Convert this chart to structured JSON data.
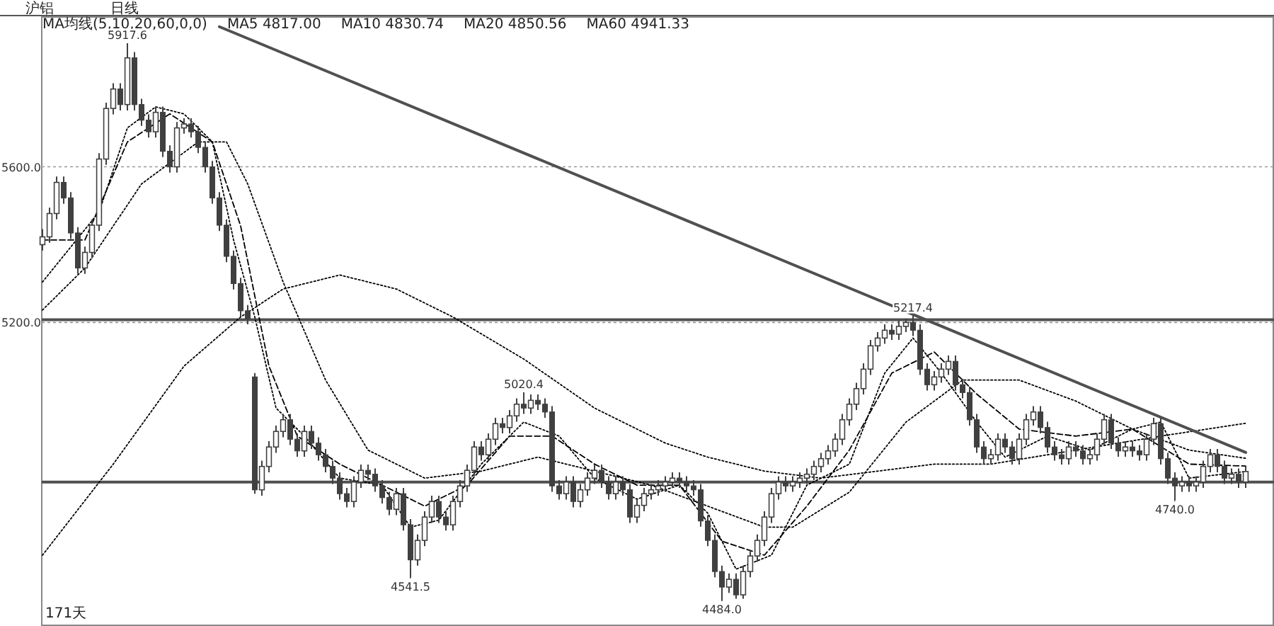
{
  "chart_data": {
    "type": "candlestick",
    "title": "沪铝",
    "subtitle": "日线",
    "categories": [
      null,
      null,
      null,
      null,
      null,
      null,
      null,
      null,
      null,
      null,
      null,
      null,
      null,
      null,
      null,
      null,
      null,
      null,
      null,
      null,
      null,
      null,
      null,
      null,
      null,
      null,
      null,
      null,
      null,
      null,
      null,
      null,
      null,
      null,
      null,
      null,
      null,
      null,
      null,
      null,
      null,
      null,
      null,
      null,
      null,
      null,
      null,
      null,
      null,
      null,
      null,
      null,
      null,
      null,
      null,
      null,
      null,
      null,
      null,
      null,
      null,
      null,
      null,
      null,
      null,
      null,
      null,
      null,
      null,
      null,
      null,
      null,
      null,
      null,
      null,
      null,
      null,
      null,
      null,
      null,
      null,
      null,
      null,
      null,
      null,
      null,
      null,
      null,
      null,
      null,
      null,
      null,
      null,
      null,
      null,
      null,
      null,
      null,
      null,
      null,
      null,
      null,
      null,
      null,
      null,
      null,
      null,
      null,
      null,
      null,
      null,
      null,
      null,
      null,
      null,
      null,
      null,
      null,
      null,
      null,
      null,
      null,
      null,
      null,
      null,
      null,
      null,
      null,
      null,
      null,
      null,
      null,
      null,
      null,
      null,
      null,
      null,
      null,
      null,
      null,
      null,
      null,
      null,
      null,
      null,
      null,
      null,
      null,
      null,
      null,
      null,
      null,
      null,
      null,
      null,
      null,
      null,
      null,
      null,
      null,
      null,
      null,
      null,
      null,
      null,
      null,
      null,
      null,
      null,
      null,
      null
    ],
    "color": "#404040",
    "ohlc": [
      [
        5400,
        5440,
        5385,
        5420
      ],
      [
        5420,
        5495,
        5405,
        5480
      ],
      [
        5480,
        5575,
        5465,
        5560
      ],
      [
        5560,
        5575,
        5505,
        5520
      ],
      [
        5520,
        5535,
        5415,
        5430
      ],
      [
        5430,
        5445,
        5325,
        5340
      ],
      [
        5340,
        5395,
        5325,
        5380
      ],
      [
        5380,
        5465,
        5365,
        5450
      ],
      [
        5450,
        5635,
        5435,
        5620
      ],
      [
        5620,
        5765,
        5605,
        5750
      ],
      [
        5750,
        5815,
        5735,
        5800
      ],
      [
        5800,
        5815,
        5745,
        5760
      ],
      [
        5760,
        5917.6,
        5745,
        5880
      ],
      [
        5880,
        5895,
        5745,
        5760
      ],
      [
        5760,
        5775,
        5705,
        5720
      ],
      [
        5720,
        5735,
        5675,
        5690
      ],
      [
        5690,
        5755,
        5675,
        5740
      ],
      [
        5740,
        5755,
        5625,
        5640
      ],
      [
        5640,
        5655,
        5585,
        5600
      ],
      [
        5600,
        5715,
        5585,
        5700
      ],
      [
        5700,
        5725,
        5685,
        5710
      ],
      [
        5710,
        5725,
        5675,
        5690
      ],
      [
        5690,
        5705,
        5635,
        5650
      ],
      [
        5650,
        5665,
        5585,
        5600
      ],
      [
        5600,
        5615,
        5505,
        5520
      ],
      [
        5520,
        5535,
        5435,
        5450
      ],
      [
        5450,
        5465,
        5355,
        5370
      ],
      [
        5370,
        5385,
        5285,
        5300
      ],
      [
        5300,
        5315,
        5215,
        5230
      ],
      [
        5230,
        5245,
        5195,
        5210
      ],
      [
        5060,
        5070,
        4760,
        4770
      ],
      [
        4770,
        4845,
        4755,
        4830
      ],
      [
        4830,
        4895,
        4815,
        4880
      ],
      [
        4880,
        4935,
        4865,
        4920
      ],
      [
        4920,
        4965,
        4905,
        4950
      ],
      [
        4950,
        4965,
        4885,
        4900
      ],
      [
        4900,
        4915,
        4855,
        4870
      ],
      [
        4870,
        4935,
        4855,
        4920
      ],
      [
        4920,
        4935,
        4875,
        4890
      ],
      [
        4890,
        4905,
        4845,
        4860
      ],
      [
        4860,
        4875,
        4815,
        4830
      ],
      [
        4830,
        4845,
        4785,
        4800
      ],
      [
        4800,
        4815,
        4745,
        4760
      ],
      [
        4760,
        4775,
        4725,
        4740
      ],
      [
        4740,
        4805,
        4725,
        4790
      ],
      [
        4790,
        4835,
        4775,
        4820
      ],
      [
        4820,
        4835,
        4795,
        4810
      ],
      [
        4810,
        4825,
        4765,
        4780
      ],
      [
        4780,
        4795,
        4735,
        4750
      ],
      [
        4750,
        4765,
        4705,
        4720
      ],
      [
        4720,
        4775,
        4705,
        4760
      ],
      [
        4760,
        4775,
        4665,
        4680
      ],
      [
        4680,
        4695,
        4541.5,
        4590
      ],
      [
        4590,
        4655,
        4575,
        4640
      ],
      [
        4640,
        4715,
        4625,
        4700
      ],
      [
        4700,
        4755,
        4685,
        4740
      ],
      [
        4740,
        4755,
        4685,
        4700
      ],
      [
        4700,
        4715,
        4665,
        4680
      ],
      [
        4680,
        4755,
        4665,
        4740
      ],
      [
        4740,
        4795,
        4725,
        4780
      ],
      [
        4780,
        4835,
        4765,
        4820
      ],
      [
        4820,
        4895,
        4805,
        4880
      ],
      [
        4880,
        4895,
        4845,
        4860
      ],
      [
        4860,
        4915,
        4845,
        4900
      ],
      [
        4900,
        4955,
        4885,
        4940
      ],
      [
        4940,
        4955,
        4915,
        4930
      ],
      [
        4930,
        4975,
        4915,
        4960
      ],
      [
        4960,
        5005,
        4945,
        4990
      ],
      [
        4990,
        5020.4,
        4965,
        4980
      ],
      [
        4980,
        5015,
        4965,
        5000
      ],
      [
        5000,
        5015,
        4975,
        4990
      ],
      [
        4990,
        5005,
        4955,
        4970
      ],
      [
        4970,
        4985,
        4765,
        4780
      ],
      [
        4780,
        4795,
        4745,
        4760
      ],
      [
        4760,
        4805,
        4745,
        4790
      ],
      [
        4790,
        4805,
        4725,
        4740
      ],
      [
        4740,
        4785,
        4725,
        4770
      ],
      [
        4770,
        4815,
        4755,
        4800
      ],
      [
        4800,
        4835,
        4785,
        4820
      ],
      [
        4820,
        4835,
        4775,
        4790
      ],
      [
        4790,
        4805,
        4745,
        4760
      ],
      [
        4760,
        4805,
        4745,
        4790
      ],
      [
        4790,
        4805,
        4755,
        4770
      ],
      [
        4770,
        4785,
        4685,
        4700
      ],
      [
        4700,
        4745,
        4685,
        4730
      ],
      [
        4730,
        4775,
        4715,
        4760
      ],
      [
        4760,
        4785,
        4745,
        4770
      ],
      [
        4770,
        4795,
        4755,
        4780
      ],
      [
        4780,
        4805,
        4765,
        4790
      ],
      [
        4790,
        4815,
        4775,
        4800
      ],
      [
        4800,
        4815,
        4775,
        4790
      ],
      [
        4790,
        4805,
        4765,
        4780
      ],
      [
        4780,
        4795,
        4755,
        4770
      ],
      [
        4770,
        4785,
        4675,
        4690
      ],
      [
        4690,
        4705,
        4625,
        4640
      ],
      [
        4640,
        4655,
        4545,
        4560
      ],
      [
        4560,
        4575,
        4484,
        4520
      ],
      [
        4520,
        4555,
        4505,
        4540
      ],
      [
        4540,
        4555,
        4490,
        4500
      ],
      [
        4500,
        4575,
        4490,
        4560
      ],
      [
        4560,
        4615,
        4545,
        4600
      ],
      [
        4600,
        4655,
        4585,
        4640
      ],
      [
        4640,
        4715,
        4625,
        4700
      ],
      [
        4700,
        4775,
        4685,
        4760
      ],
      [
        4760,
        4805,
        4745,
        4790
      ],
      [
        4790,
        4805,
        4765,
        4780
      ],
      [
        4780,
        4805,
        4765,
        4790
      ],
      [
        4790,
        4815,
        4775,
        4800
      ],
      [
        4800,
        4825,
        4785,
        4810
      ],
      [
        4810,
        4845,
        4795,
        4830
      ],
      [
        4830,
        4865,
        4815,
        4850
      ],
      [
        4850,
        4885,
        4835,
        4870
      ],
      [
        4870,
        4915,
        4855,
        4900
      ],
      [
        4900,
        4965,
        4885,
        4950
      ],
      [
        4950,
        5005,
        4935,
        4990
      ],
      [
        4990,
        5045,
        4975,
        5030
      ],
      [
        5030,
        5095,
        5015,
        5080
      ],
      [
        5080,
        5155,
        5065,
        5140
      ],
      [
        5140,
        5175,
        5125,
        5160
      ],
      [
        5160,
        5195,
        5145,
        5180
      ],
      [
        5180,
        5195,
        5155,
        5170
      ],
      [
        5170,
        5205,
        5155,
        5190
      ],
      [
        5190,
        5210,
        5175,
        5200
      ],
      [
        5200,
        5217.4,
        5165,
        5180
      ],
      [
        5180,
        5195,
        5065,
        5080
      ],
      [
        5080,
        5095,
        5025,
        5040
      ],
      [
        5040,
        5075,
        5025,
        5060
      ],
      [
        5060,
        5095,
        5045,
        5080
      ],
      [
        5080,
        5115,
        5065,
        5100
      ],
      [
        5100,
        5115,
        5025,
        5040
      ],
      [
        5040,
        5055,
        5005,
        5020
      ],
      [
        5020,
        5035,
        4935,
        4950
      ],
      [
        4950,
        4965,
        4865,
        4880
      ],
      [
        4880,
        4895,
        4835,
        4850
      ],
      [
        4850,
        4875,
        4835,
        4860
      ],
      [
        4860,
        4915,
        4845,
        4900
      ],
      [
        4900,
        4915,
        4865,
        4880
      ],
      [
        4880,
        4895,
        4835,
        4850
      ],
      [
        4850,
        4915,
        4835,
        4900
      ],
      [
        4900,
        4965,
        4885,
        4950
      ],
      [
        4950,
        4985,
        4935,
        4970
      ],
      [
        4970,
        4985,
        4915,
        4930
      ],
      [
        4930,
        4945,
        4865,
        4880
      ],
      [
        4880,
        4895,
        4845,
        4860
      ],
      [
        4860,
        4875,
        4835,
        4850
      ],
      [
        4850,
        4895,
        4835,
        4880
      ],
      [
        4880,
        4895,
        4855,
        4870
      ],
      [
        4870,
        4885,
        4835,
        4850
      ],
      [
        4850,
        4875,
        4835,
        4860
      ],
      [
        4860,
        4915,
        4845,
        4900
      ],
      [
        4900,
        4965,
        4885,
        4950
      ],
      [
        4950,
        4965,
        4875,
        4890
      ],
      [
        4890,
        4905,
        4855,
        4870
      ],
      [
        4870,
        4895,
        4855,
        4880
      ],
      [
        4880,
        4895,
        4855,
        4870
      ],
      [
        4870,
        4885,
        4845,
        4860
      ],
      [
        4860,
        4915,
        4845,
        4900
      ],
      [
        4900,
        4955,
        4885,
        4940
      ],
      [
        4940,
        4955,
        4835,
        4850
      ],
      [
        4850,
        4865,
        4785,
        4800
      ],
      [
        4800,
        4815,
        4740,
        4780
      ],
      [
        4780,
        4805,
        4765,
        4790
      ],
      [
        4790,
        4805,
        4765,
        4780
      ],
      [
        4780,
        4805,
        4765,
        4790
      ],
      [
        4790,
        4845,
        4775,
        4830
      ],
      [
        4830,
        4875,
        4815,
        4860
      ],
      [
        4860,
        4875,
        4815,
        4830
      ],
      [
        4830,
        4845,
        4785,
        4800
      ],
      [
        4800,
        4825,
        4785,
        4810
      ],
      [
        4810,
        4825,
        4775,
        4790
      ],
      [
        4790,
        4830,
        4775,
        4817
      ]
    ],
    "series": [
      {
        "type": "line",
        "color": "#000000",
        "line_style": "dotted",
        "values": [
          5304,
          null,
          null,
          null,
          5394,
          null,
          null,
          null,
          5484,
          null,
          null,
          null,
          5700,
          null,
          null,
          null,
          5754,
          null,
          null,
          null,
          5736,
          null,
          null,
          null,
          5664,
          null,
          null,
          5412,
          null,
          null,
          5214,
          null,
          null,
          4980,
          null,
          null,
          null,
          4908,
          null,
          null,
          null,
          null,
          4800,
          null,
          null,
          null,
          null,
          null,
          4782,
          null,
          null,
          null,
          4674,
          null,
          null,
          null,
          4692,
          null,
          null,
          null,
          null,
          null,
          4836,
          null,
          null,
          null,
          null,
          null,
          4944,
          null,
          null,
          null,
          null,
          4908,
          null,
          null,
          null,
          null,
          4800,
          null,
          null,
          null,
          null,
          null,
          4746,
          null,
          null,
          null,
          null,
          null,
          4782,
          null,
          null,
          null,
          4710,
          null,
          null,
          null,
          4566,
          null,
          null,
          null,
          null,
          4602,
          null,
          null,
          null,
          null,
          4782,
          null,
          null,
          null,
          null,
          null,
          4836,
          null,
          null,
          null,
          null,
          5070,
          null,
          null,
          null,
          5160,
          null,
          null,
          null,
          5070,
          null,
          null,
          null,
          null,
          4944,
          null,
          null,
          null,
          4854,
          null,
          null,
          null,
          null,
          null,
          4908,
          null,
          null,
          null,
          null,
          null,
          4872,
          null,
          null,
          null,
          null,
          null,
          4926,
          null,
          null,
          null,
          4944,
          null,
          null,
          null,
          4800,
          null,
          null,
          null,
          null,
          null,
          null,
          null,
          4817
        ]
      },
      {
        "type": "line",
        "color": "#000000",
        "line_style": "dashed",
        "values": [
          5412,
          null,
          null,
          null,
          null,
          null,
          5412,
          null,
          null,
          null,
          null,
          null,
          5664,
          null,
          null,
          null,
          null,
          null,
          5736,
          null,
          null,
          null,
          null,
          null,
          5664,
          null,
          null,
          null,
          5448,
          null,
          null,
          null,
          5088,
          null,
          null,
          null,
          4908,
          null,
          null,
          null,
          null,
          null,
          4836,
          null,
          null,
          null,
          null,
          null,
          4782,
          null,
          null,
          null,
          null,
          null,
          4728,
          null,
          null,
          null,
          null,
          null,
          4782,
          null,
          null,
          null,
          null,
          null,
          4908,
          null,
          null,
          null,
          null,
          null,
          4908,
          null,
          null,
          null,
          null,
          null,
          4836,
          null,
          null,
          null,
          null,
          null,
          4782,
          null,
          null,
          null,
          null,
          null,
          4782,
          null,
          null,
          null,
          null,
          null,
          4638,
          null,
          null,
          null,
          null,
          null,
          4602,
          null,
          null,
          null,
          null,
          null,
          4728,
          null,
          null,
          null,
          null,
          null,
          4872,
          null,
          null,
          null,
          null,
          null,
          5070,
          null,
          null,
          null,
          null,
          null,
          5124,
          null,
          null,
          null,
          null,
          null,
          5016,
          null,
          null,
          null,
          null,
          null,
          4926,
          null,
          null,
          null,
          null,
          null,
          null,
          null,
          4908,
          null,
          null,
          null,
          null,
          null,
          null,
          null,
          4926,
          null,
          null,
          null,
          null,
          null,
          null,
          null,
          4836,
          null,
          null,
          null,
          null,
          null,
          null,
          null,
          4831
        ]
      },
      {
        "type": "line",
        "color": "#000000",
        "line_style": "dotted",
        "values": [
          5232,
          null,
          null,
          null,
          null,
          null,
          5340,
          null,
          null,
          null,
          null,
          null,
          null,
          null,
          5556,
          null,
          null,
          null,
          null,
          null,
          null,
          null,
          5664,
          null,
          null,
          null,
          5664,
          null,
          null,
          5556,
          null,
          null,
          null,
          null,
          5304,
          null,
          null,
          null,
          null,
          null,
          5052,
          null,
          null,
          null,
          null,
          null,
          4872,
          null,
          null,
          null,
          null,
          null,
          null,
          null,
          4800,
          null,
          null,
          null,
          null,
          null,
          null,
          null,
          4818,
          null,
          null,
          null,
          null,
          null,
          null,
          null,
          4854,
          null,
          null,
          null,
          null,
          null,
          null,
          null,
          4818,
          null,
          null,
          null,
          null,
          null,
          null,
          null,
          4782,
          null,
          null,
          null,
          null,
          null,
          null,
          null,
          4728,
          null,
          null,
          null,
          null,
          null,
          null,
          null,
          4674,
          null,
          null,
          null,
          4674,
          null,
          null,
          null,
          null,
          null,
          null,
          null,
          4764,
          null,
          null,
          null,
          null,
          null,
          null,
          null,
          4944,
          null,
          null,
          null,
          null,
          null,
          null,
          null,
          5052,
          null,
          null,
          null,
          null,
          null,
          null,
          null,
          5052,
          null,
          null,
          null,
          null,
          null,
          null,
          null,
          4998,
          null,
          null,
          null,
          null,
          null,
          null,
          null,
          4926,
          null,
          null,
          null,
          null,
          null,
          null,
          null,
          4872,
          null,
          null,
          null,
          null,
          null,
          null,
          null,
          4851
        ]
      },
      {
        "type": "line",
        "color": "#000000",
        "line_style": "dotted",
        "values": [
          4602,
          null,
          null,
          null,
          null,
          null,
          null,
          null,
          null,
          null,
          4836,
          null,
          null,
          null,
          null,
          null,
          null,
          null,
          null,
          null,
          5088,
          null,
          null,
          null,
          null,
          null,
          null,
          null,
          5214,
          null,
          null,
          null,
          null,
          null,
          5286,
          null,
          null,
          null,
          null,
          null,
          null,
          null,
          5322,
          null,
          null,
          null,
          null,
          null,
          null,
          null,
          5286,
          null,
          null,
          null,
          null,
          null,
          null,
          null,
          5214,
          null,
          null,
          null,
          null,
          null,
          null,
          null,
          null,
          null,
          5106,
          null,
          null,
          null,
          null,
          null,
          null,
          null,
          null,
          null,
          4980,
          null,
          null,
          null,
          null,
          null,
          null,
          null,
          null,
          null,
          4890,
          null,
          null,
          null,
          null,
          null,
          4854,
          null,
          null,
          null,
          null,
          null,
          null,
          null,
          4818,
          null,
          null,
          null,
          null,
          null,
          null,
          null,
          4800,
          null,
          null,
          null,
          null,
          null,
          null,
          null,
          4818,
          null,
          null,
          null,
          null,
          null,
          null,
          null,
          4836,
          null,
          null,
          null,
          null,
          null,
          null,
          null,
          4836,
          null,
          null,
          null,
          null,
          null,
          null,
          null,
          null,
          null,
          null,
          null,
          4872,
          null,
          null,
          null,
          null,
          null,
          null,
          null,
          null,
          null,
          null,
          null,
          4908,
          null,
          null,
          null,
          null,
          null,
          null,
          null,
          null,
          null,
          null,
          null,
          4941
        ]
      },
      {
        "type": "line",
        "color": "#505050",
        "line_style": "solid",
        "values": [
          null,
          null,
          null,
          null,
          null,
          null,
          null,
          null,
          null,
          null,
          null,
          null,
          null,
          null,
          null,
          null,
          null,
          null,
          null,
          null,
          null,
          null,
          null,
          null,
          null,
          5960,
          null,
          null,
          null,
          null,
          null,
          null,
          null,
          null,
          null,
          null,
          null,
          null,
          null,
          null,
          null,
          null,
          null,
          null,
          null,
          null,
          null,
          null,
          null,
          null,
          null,
          null,
          null,
          null,
          null,
          null,
          null,
          null,
          null,
          null,
          null,
          null,
          null,
          null,
          null,
          null,
          null,
          null,
          null,
          null,
          null,
          null,
          null,
          null,
          null,
          null,
          null,
          null,
          null,
          null,
          null,
          null,
          null,
          null,
          null,
          null,
          null,
          null,
          null,
          null,
          null,
          null,
          null,
          null,
          null,
          null,
          null,
          null,
          null,
          null,
          null,
          null,
          null,
          null,
          null,
          null,
          null,
          null,
          null,
          null,
          null,
          null,
          null,
          null,
          null,
          null,
          null,
          null,
          null,
          null,
          null,
          null,
          null,
          null,
          null,
          null,
          null,
          null,
          null,
          null,
          null,
          null,
          null,
          null,
          null,
          null,
          null,
          null,
          null,
          null,
          null,
          null,
          null,
          null,
          null,
          null,
          null,
          null,
          null,
          null,
          null,
          null,
          null,
          null,
          null,
          null,
          null,
          null,
          null,
          null,
          null,
          null,
          null,
          null,
          null,
          null,
          null,
          null,
          null,
          null,
          4866
        ]
      }
    ],
    "ylim": [
      4420,
      5985
    ],
    "yticks": [
      {
        "value": 5600,
        "label": "5600.0"
      },
      {
        "value": 5200,
        "label": "5200.0"
      }
    ],
    "grid": "y",
    "tick_labels": "y",
    "ref_lines": [
      {
        "axis": "y",
        "value": 5207,
        "color": "#505050"
      },
      {
        "axis": "y",
        "value": 4790,
        "color": "#505050"
      }
    ],
    "annotations": [
      "MA均线(5,10,20,60,0,0)",
      "MA5 4817.00",
      "MA10 4830.74",
      "MA20 4850.56",
      "MA60 4941.33",
      "171天",
      {
        "text": "5917.6",
        "y": 5917.6
      },
      {
        "text": "4541.5",
        "y": 4541.5
      },
      {
        "text": "5020.4",
        "y": 5020.4
      },
      {
        "text": "4484.0",
        "y": 4484
      },
      {
        "text": "5217.4",
        "y": 5217.4
      },
      {
        "text": "4740.0",
        "y": 4740
      }
    ]
  }
}
